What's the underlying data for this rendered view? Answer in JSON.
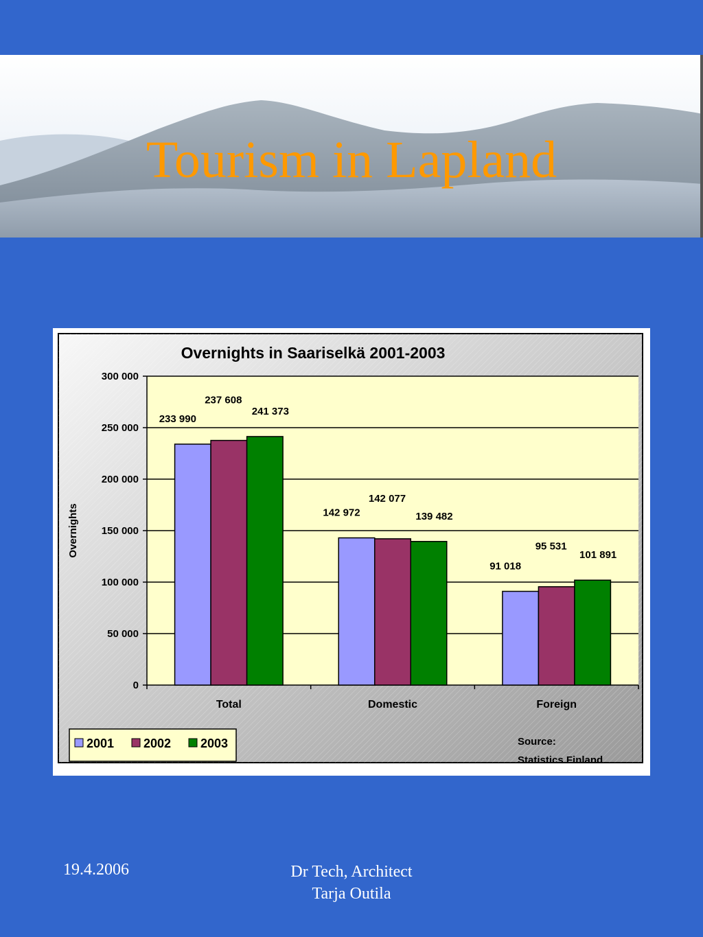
{
  "slide": {
    "title": "Tourism in Lapland",
    "footer_date": "19.4.2006",
    "footer_author_line1": "Dr Tech, Architect",
    "footer_author_line2": "Tarja Outila"
  },
  "chart_data": {
    "type": "bar",
    "title": "Overnights in Saariselkä 2001-2003",
    "xlabel": "",
    "ylabel": "Overnights",
    "categories": [
      "Total",
      "Domestic",
      "Foreign"
    ],
    "series": [
      {
        "name": "2001",
        "color": "#9999ff",
        "values": [
          233990,
          142972,
          91018
        ],
        "labels": [
          "233 990",
          "142 972",
          "91 018"
        ]
      },
      {
        "name": "2002",
        "color": "#993366",
        "values": [
          237608,
          142077,
          95531
        ],
        "labels": [
          "237 608",
          "142 077",
          "95 531"
        ]
      },
      {
        "name": "2003",
        "color": "#008000",
        "values": [
          241373,
          139482,
          101891
        ],
        "labels": [
          "241 373",
          "139 482",
          "101 891"
        ]
      }
    ],
    "ylim": [
      0,
      300000
    ],
    "yticks": [
      0,
      50000,
      100000,
      150000,
      200000,
      250000,
      300000
    ],
    "ytick_labels": [
      "0",
      "50 000",
      "100 000",
      "150 000",
      "200 000",
      "250 000",
      "300 000"
    ],
    "grid": true,
    "legend_position": "bottom-left",
    "plot_background": "#ffffcc",
    "source_line1": "Source:",
    "source_line2": "Statistics Finland"
  }
}
